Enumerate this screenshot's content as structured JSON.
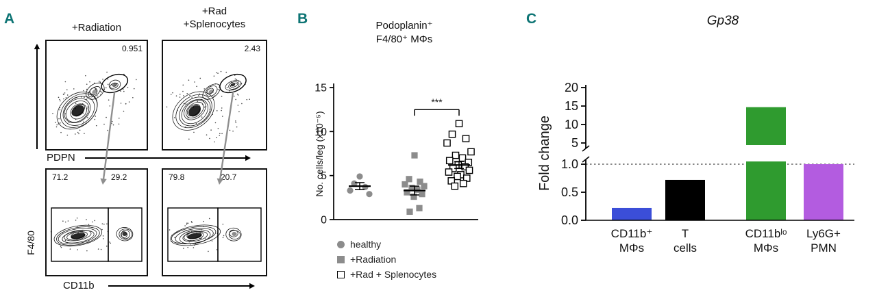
{
  "figure": {
    "background": "#ffffff",
    "panel_label_color": "#0d7474"
  },
  "panel_a": {
    "label": "A",
    "plots": {
      "top_left": {
        "title": "+Radiation",
        "gate_value": "0.951"
      },
      "top_right": {
        "title_lines": [
          "+Rad",
          "+Splenocytes"
        ],
        "gate_value": "2.43"
      },
      "bottom_left": {
        "gate_values": [
          "71.2",
          "29.2"
        ]
      },
      "bottom_right": {
        "gate_values": [
          "79.8",
          "20.7"
        ]
      }
    },
    "axes": {
      "top_x": "PDPN",
      "bottom_x": "CD11b",
      "y": "F4/80"
    }
  },
  "panel_b": {
    "label": "B"
  },
  "panel_c": {
    "label": "C"
  },
  "chart_data": [
    {
      "panel": "B",
      "type": "scatter",
      "title_lines": [
        "Podoplanin⁺",
        "F4/80⁺ MΦs"
      ],
      "ylabel": "No. cells/leg (x10⁻⁵)",
      "ylim": [
        0,
        15
      ],
      "yticks": [
        0,
        5,
        10,
        15
      ],
      "groups": [
        {
          "name": "healthy",
          "marker": "circle",
          "fill": "#8c8c8c",
          "values": [
            4.9,
            4.1,
            3.7,
            3.3,
            2.9
          ],
          "mean": 3.8,
          "sem": 0.4
        },
        {
          "name": "+Radiation",
          "marker": "square",
          "fill": "#8c8c8c",
          "values": [
            7.3,
            4.6,
            4.3,
            4.0,
            3.8,
            3.6,
            3.4,
            3.1,
            2.9,
            2.6,
            1.3,
            0.9
          ],
          "mean": 3.3,
          "sem": 0.5
        },
        {
          "name": "+Rad + Splenocytes",
          "marker": "open-square",
          "fill": "#ffffff",
          "values": [
            10.9,
            9.7,
            9.2,
            8.7,
            7.7,
            7.3,
            7.0,
            6.7,
            6.5,
            6.2,
            6.0,
            5.8,
            5.6,
            5.4,
            5.1,
            4.9,
            4.7,
            4.4,
            4.1,
            3.8
          ],
          "mean": 6.2,
          "sem": 0.4
        }
      ],
      "significance": {
        "between_groups": [
          1,
          2
        ],
        "label": "***",
        "y_position": 12.5
      }
    },
    {
      "panel": "C",
      "type": "bar",
      "title": "Gp38",
      "ylabel": "Fold change",
      "categories": [
        [
          "CD11b⁺",
          "MΦs"
        ],
        [
          "T",
          "cells"
        ],
        [
          "CD11bˡᵒ",
          "MΦs"
        ],
        [
          "Ly6G+",
          "PMN"
        ]
      ],
      "values": [
        0.22,
        0.72,
        14.7,
        1.0
      ],
      "colors": [
        "#3b4ed8",
        "#000000",
        "#2f9b2f",
        "#b35ce0"
      ],
      "axis_break": {
        "lower_range": [
          0,
          1.0
        ],
        "lower_ticks": [
          "0.0",
          "0.5",
          "1.0"
        ],
        "upper_range": [
          5,
          20
        ],
        "upper_ticks": [
          "5",
          "10",
          "15",
          "20"
        ]
      },
      "reference_line": 1.0
    }
  ]
}
